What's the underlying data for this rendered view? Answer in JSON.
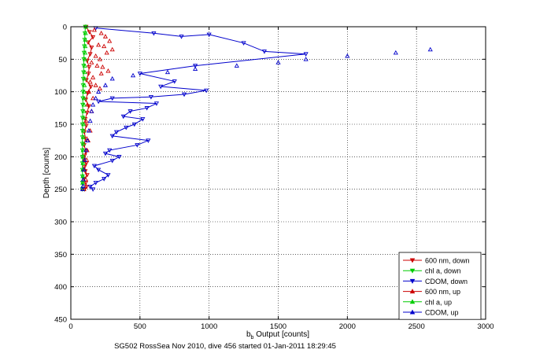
{
  "chart_data": {
    "type": "scatter",
    "title": "",
    "xlabel_main": "b",
    "xlabel_sub": "b",
    "xlabel_rest": " Output [counts]",
    "ylabel": "Depth [counts]",
    "caption": "SG502 RossSea Nov 2010, dive 456 started 01-Jan-2011 18:29:45",
    "xlim": [
      0,
      3000
    ],
    "ylim": [
      0,
      450
    ],
    "y_reversed": true,
    "grid": true,
    "legend_position": "bottom-right",
    "xticks": [
      0,
      500,
      1000,
      1500,
      2000,
      2500,
      3000
    ],
    "xtick_labels": [
      "0",
      "500",
      "1000",
      "1500",
      "2000",
      "2500",
      "3000"
    ],
    "yticks": [
      0,
      50,
      100,
      150,
      200,
      250,
      300,
      350,
      400,
      450
    ],
    "ytick_labels": [
      "0",
      "50",
      "100",
      "150",
      "200",
      "250",
      "300",
      "350",
      "400",
      "450"
    ],
    "series": [
      {
        "name": "600 nm, down",
        "color": "#cc0000",
        "marker": "triangle-down",
        "line": true,
        "x": [
          110,
          135,
          160,
          125,
          150,
          140,
          118,
          132,
          128,
          112,
          145,
          122,
          108,
          130,
          118,
          104,
          112,
          98,
          106,
          96,
          110,
          100,
          94,
          112,
          98,
          104,
          118,
          96,
          108,
          114,
          100
        ],
        "y": [
          0,
          8,
          16,
          24,
          32,
          42,
          52,
          62,
          72,
          82,
          92,
          102,
          112,
          122,
          132,
          142,
          152,
          162,
          172,
          182,
          192,
          198,
          204,
          210,
          216,
          222,
          228,
          234,
          240,
          246,
          250
        ]
      },
      {
        "name": "chl a, down",
        "color": "#00cc00",
        "marker": "triangle-down",
        "line": true,
        "x": [
          105,
          102,
          100,
          98,
          96,
          94,
          93,
          92,
          90,
          89,
          88,
          87,
          86,
          86,
          85,
          85,
          84,
          84,
          84,
          84,
          84,
          84,
          84,
          84,
          84,
          84
        ],
        "y": [
          0,
          10,
          20,
          30,
          40,
          50,
          60,
          70,
          80,
          90,
          100,
          110,
          120,
          130,
          140,
          150,
          160,
          170,
          180,
          190,
          200,
          210,
          220,
          230,
          240,
          250
        ]
      },
      {
        "name": "CDOM, down",
        "color": "#0000cc",
        "marker": "triangle-down",
        "line": true,
        "x": [
          180,
          600,
          800,
          1000,
          1250,
          1400,
          1700,
          900,
          500,
          750,
          650,
          980,
          820,
          580,
          300,
          200,
          620,
          550,
          430,
          380,
          520,
          460,
          400,
          330,
          300,
          560,
          480,
          280,
          250,
          350,
          300,
          170,
          200,
          270,
          240,
          180,
          140,
          160
        ],
        "y": [
          2,
          10,
          15,
          12,
          25,
          38,
          42,
          60,
          72,
          84,
          92,
          98,
          104,
          108,
          110,
          115,
          118,
          125,
          130,
          138,
          142,
          150,
          155,
          162,
          168,
          175,
          182,
          190,
          195,
          200,
          206,
          214,
          220,
          228,
          234,
          240,
          246,
          250
        ]
      },
      {
        "name": "600 nm, up",
        "color": "#cc0000",
        "marker": "triangle-up",
        "line": false,
        "x": [
          170,
          220,
          250,
          280,
          200,
          240,
          300,
          260,
          180,
          210,
          150,
          190,
          230,
          270,
          220,
          160,
          140,
          180,
          210,
          130,
          160,
          120,
          150,
          110,
          140,
          125,
          118,
          115,
          100,
          108,
          95
        ],
        "y": [
          5,
          10,
          15,
          22,
          28,
          30,
          35,
          40,
          45,
          50,
          55,
          60,
          62,
          68,
          72,
          78,
          85,
          90,
          95,
          100,
          110,
          120,
          130,
          145,
          160,
          175,
          190,
          205,
          220,
          235,
          250
        ]
      },
      {
        "name": "chl a, up",
        "color": "#00cc00",
        "marker": "triangle-up",
        "line": false,
        "x": [
          108,
          106,
          105,
          104,
          103,
          102,
          101,
          100,
          99,
          98,
          97,
          96,
          95,
          94,
          93,
          92,
          91,
          90,
          90,
          89,
          88,
          88,
          87,
          87,
          86,
          86
        ],
        "y": [
          0,
          10,
          20,
          30,
          40,
          50,
          60,
          70,
          80,
          90,
          100,
          110,
          120,
          130,
          140,
          150,
          160,
          170,
          180,
          190,
          200,
          210,
          220,
          230,
          240,
          250
        ]
      },
      {
        "name": "CDOM, up",
        "color": "#0000cc",
        "marker": "triangle-up",
        "line": false,
        "x": [
          2600,
          2350,
          2000,
          1700,
          1500,
          1200,
          900,
          700,
          450,
          300,
          250,
          200,
          180,
          160,
          150,
          140,
          130,
          120,
          110,
          100,
          95,
          90,
          88,
          85
        ],
        "y": [
          35,
          40,
          45,
          50,
          55,
          60,
          65,
          70,
          75,
          80,
          90,
          100,
          110,
          120,
          130,
          145,
          160,
          175,
          190,
          205,
          220,
          235,
          245,
          250
        ]
      }
    ]
  }
}
